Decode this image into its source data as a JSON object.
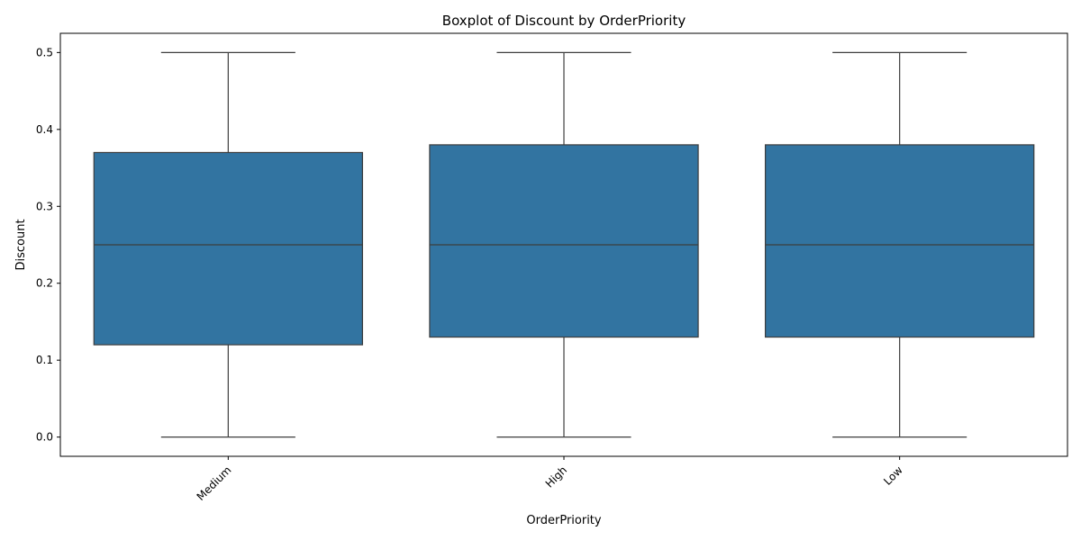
{
  "chart_data": {
    "type": "box",
    "title": "Boxplot of Discount by OrderPriority",
    "xlabel": "OrderPriority",
    "ylabel": "Discount",
    "categories": [
      "Medium",
      "High",
      "Low"
    ],
    "boxes": [
      {
        "category": "Medium",
        "min": 0.0,
        "q1": 0.12,
        "median": 0.25,
        "q3": 0.37,
        "max": 0.5
      },
      {
        "category": "High",
        "min": 0.0,
        "q1": 0.13,
        "median": 0.25,
        "q3": 0.38,
        "max": 0.5
      },
      {
        "category": "Low",
        "min": 0.0,
        "q1": 0.13,
        "median": 0.25,
        "q3": 0.38,
        "max": 0.5
      }
    ],
    "ylim": [
      -0.025,
      0.525
    ],
    "yticks": [
      0.0,
      0.1,
      0.2,
      0.3,
      0.4,
      0.5
    ],
    "ytick_labels": [
      "0.0",
      "0.1",
      "0.2",
      "0.3",
      "0.4",
      "0.5"
    ],
    "grid": false,
    "colors": {
      "box_fill": "#3274a1",
      "line": "#3d3d3d",
      "axis": "#000000"
    }
  }
}
